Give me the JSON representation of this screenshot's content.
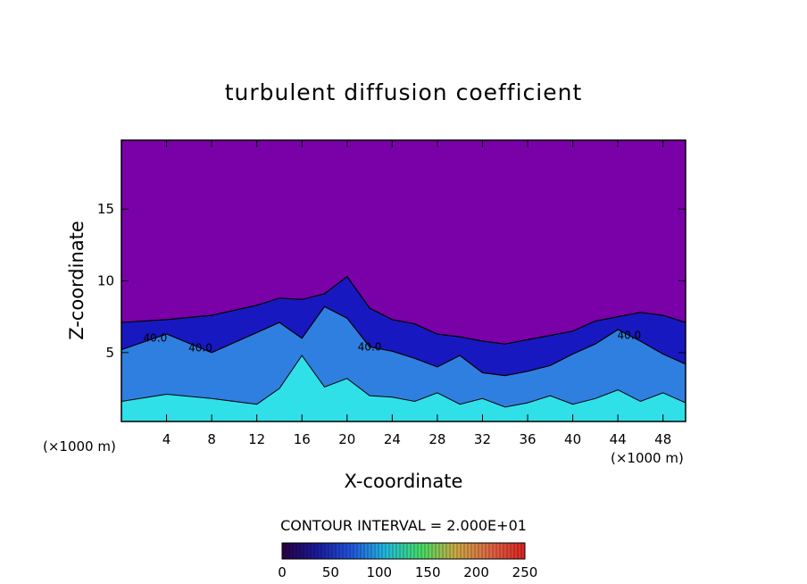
{
  "chart_data": {
    "type": "heatmap",
    "title": "turbulent diffusion coefficient",
    "xlabel": "X-coordinate",
    "ylabel": "Z-coordinate",
    "x_unit": "(×1000 m)",
    "y_unit": "(×1000 m)",
    "xlim": [
      0,
      50
    ],
    "ylim": [
      0.2,
      19.8
    ],
    "x_ticks": [
      4,
      8,
      12,
      16,
      20,
      24,
      28,
      32,
      36,
      40,
      44,
      48
    ],
    "y_ticks": [
      5,
      10,
      15
    ],
    "contour_interval_text": "CONTOUR INTERVAL = 2.000E+01",
    "contour_labels": [
      "40.0",
      "40.0",
      "40.0",
      "40.0"
    ],
    "colorbar": {
      "ticks": [
        0,
        50,
        100,
        150,
        200,
        250
      ],
      "range": [
        0,
        250
      ],
      "colors": [
        "#2a0040",
        "#1a1a9a",
        "#2255dd",
        "#22bbdd",
        "#44dd66",
        "#ccaa44",
        "#dd6644",
        "#dd2222"
      ]
    },
    "colors": {
      "background_field": "#7a00a8",
      "low_turbulence": "#1818c0",
      "mid_turbulence": "#2f7fe0",
      "high_turbulence": "#30e0e8",
      "peak_turbulence": "#60ff60",
      "contour": "#000000"
    },
    "boundary_layer_top": {
      "x": [
        0,
        4,
        8,
        12,
        14,
        16,
        18,
        20,
        22,
        24,
        26,
        28,
        30,
        32,
        34,
        36,
        38,
        40,
        42,
        44,
        46,
        48,
        50
      ],
      "z": [
        7.1,
        7.3,
        7.6,
        8.3,
        8.8,
        8.7,
        9.1,
        10.3,
        8.1,
        7.3,
        7.0,
        6.3,
        6.1,
        5.8,
        5.6,
        5.9,
        6.2,
        6.5,
        7.2,
        7.5,
        7.8,
        7.6,
        7.1
      ]
    },
    "inner_contour_40": {
      "x": [
        0,
        4,
        8,
        12,
        14,
        16,
        18,
        20,
        22,
        24,
        26,
        28,
        30,
        32,
        34,
        36,
        38,
        40,
        42,
        44,
        46,
        48,
        50
      ],
      "z": [
        5.2,
        6.3,
        5.0,
        6.4,
        7.1,
        6.0,
        8.2,
        7.4,
        5.4,
        5.1,
        4.6,
        4.0,
        4.8,
        3.6,
        3.4,
        3.7,
        4.1,
        4.9,
        5.6,
        6.6,
        5.8,
        4.9,
        4.2
      ]
    },
    "high_zone_top": {
      "x": [
        0,
        4,
        8,
        12,
        14,
        16,
        18,
        20,
        22,
        24,
        26,
        28,
        30,
        32,
        34,
        36,
        38,
        40,
        42,
        44,
        46,
        48,
        50
      ],
      "z": [
        1.6,
        2.1,
        1.8,
        1.4,
        2.5,
        4.8,
        2.6,
        3.2,
        2.0,
        1.9,
        1.6,
        2.2,
        1.4,
        1.8,
        1.2,
        1.5,
        2.0,
        1.4,
        1.8,
        2.4,
        1.6,
        2.2,
        1.5
      ]
    }
  }
}
